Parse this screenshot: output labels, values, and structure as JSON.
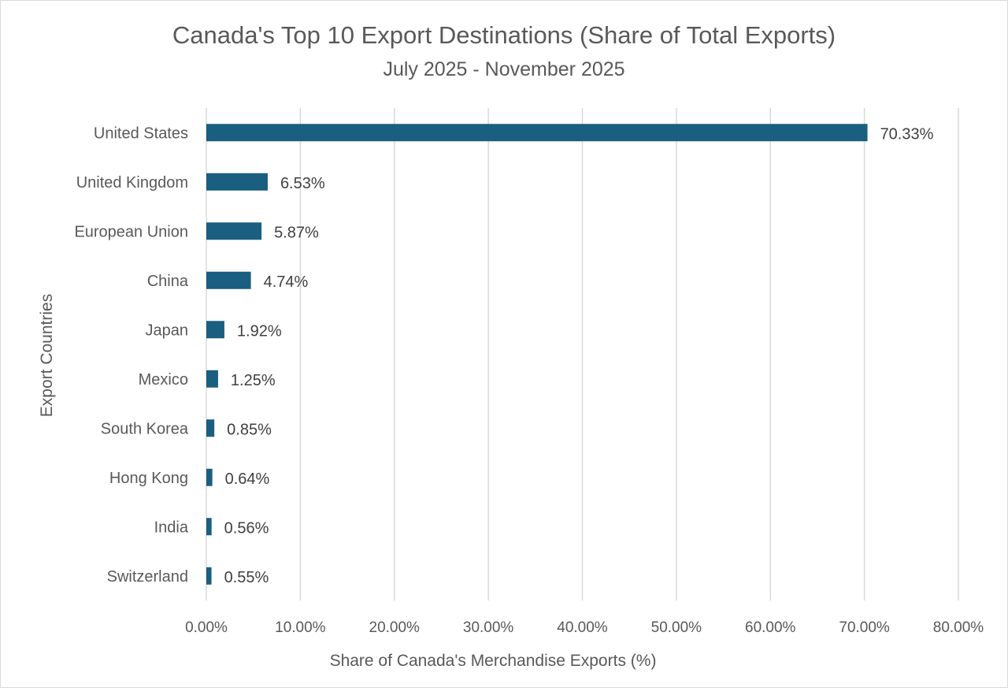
{
  "chart_data": {
    "type": "bar",
    "orientation": "horizontal",
    "title": "Canada's Top 10 Export Destinations (Share of Total Exports)",
    "subtitle": "July 2025 - November 2025",
    "xlabel": "Share of Canada's Merchandise Exports (%)",
    "ylabel": "Export Countries",
    "xlim": [
      0,
      80
    ],
    "x_ticks": [
      0,
      10,
      20,
      30,
      40,
      50,
      60,
      70,
      80
    ],
    "x_tick_labels": [
      "0.00%",
      "10.00%",
      "20.00%",
      "30.00%",
      "40.00%",
      "50.00%",
      "60.00%",
      "70.00%",
      "80.00%"
    ],
    "grid": "vertical",
    "legend": "none",
    "bar_color": "#1a5e80",
    "categories": [
      "United States",
      "United Kingdom",
      "European Union",
      "China",
      "Japan",
      "Mexico",
      "South Korea",
      "Hong Kong",
      "India",
      "Switzerland"
    ],
    "values": [
      70.33,
      6.53,
      5.87,
      4.74,
      1.92,
      1.25,
      0.85,
      0.64,
      0.56,
      0.55
    ],
    "data_labels": [
      "70.33%",
      "6.53%",
      "5.87%",
      "4.74%",
      "1.92%",
      "1.25%",
      "0.85%",
      "0.64%",
      "0.56%",
      "0.55%"
    ]
  }
}
